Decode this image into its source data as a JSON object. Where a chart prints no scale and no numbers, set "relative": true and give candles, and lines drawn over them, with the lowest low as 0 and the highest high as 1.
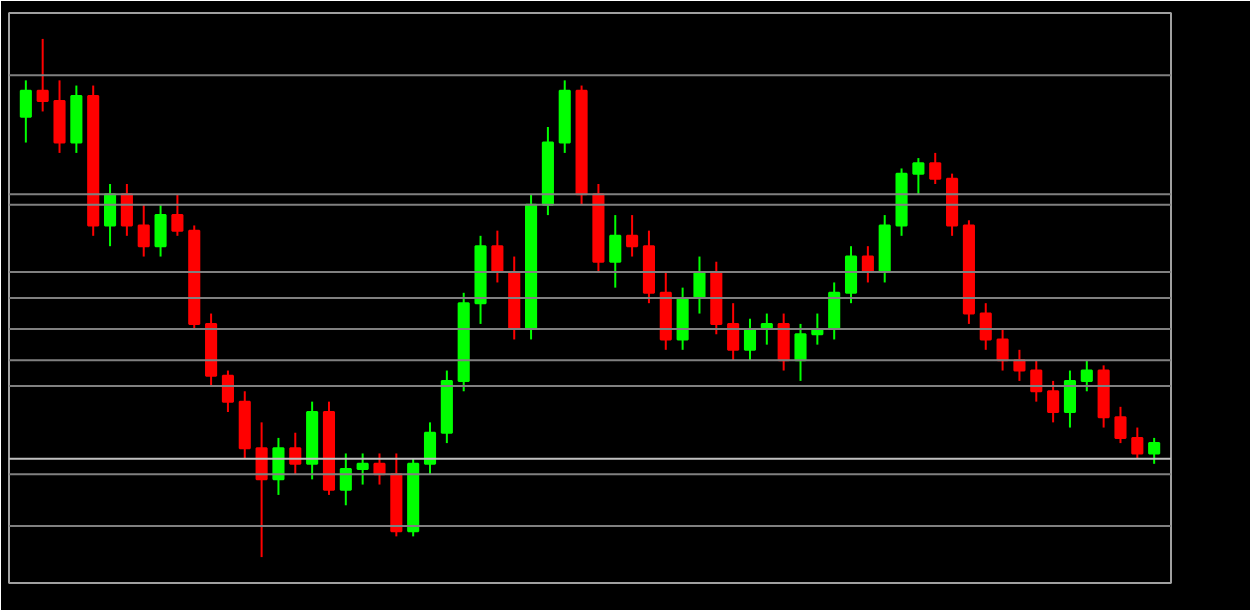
{
  "chart_data": {
    "type": "candlestick",
    "relative": true,
    "categories": [
      null,
      null,
      null,
      null,
      null,
      null,
      null,
      null,
      null,
      null,
      null,
      null,
      null,
      null,
      null,
      null,
      null,
      null,
      null,
      null,
      null,
      null,
      null,
      null,
      null,
      null,
      null,
      null,
      null,
      null,
      null,
      null,
      null,
      null,
      null,
      null,
      null,
      null,
      null,
      null,
      null,
      null,
      null,
      null,
      null,
      null,
      null,
      null,
      null,
      null,
      null,
      null,
      null,
      null,
      null,
      null,
      null,
      null,
      null,
      null,
      null,
      null,
      null,
      null,
      null,
      null,
      null,
      null
    ],
    "ohlc": [
      [
        0.85,
        0.92,
        0.8,
        0.9
      ],
      [
        0.9,
        1.0,
        0.86,
        0.88
      ],
      [
        0.88,
        0.92,
        0.78,
        0.8
      ],
      [
        0.8,
        0.91,
        0.78,
        0.89
      ],
      [
        0.89,
        0.91,
        0.62,
        0.64
      ],
      [
        0.64,
        0.72,
        0.6,
        0.7
      ],
      [
        0.7,
        0.72,
        0.62,
        0.64
      ],
      [
        0.64,
        0.68,
        0.58,
        0.6
      ],
      [
        0.6,
        0.68,
        0.58,
        0.66
      ],
      [
        0.66,
        0.7,
        0.62,
        0.63
      ],
      [
        0.63,
        0.64,
        0.44,
        0.45
      ],
      [
        0.45,
        0.47,
        0.33,
        0.35
      ],
      [
        0.35,
        0.36,
        0.28,
        0.3
      ],
      [
        0.3,
        0.32,
        0.19,
        0.21
      ],
      [
        0.21,
        0.26,
        0.0,
        0.15
      ],
      [
        0.15,
        0.23,
        0.12,
        0.21
      ],
      [
        0.21,
        0.24,
        0.16,
        0.18
      ],
      [
        0.18,
        0.3,
        0.15,
        0.28
      ],
      [
        0.28,
        0.3,
        0.12,
        0.13
      ],
      [
        0.13,
        0.2,
        0.1,
        0.17
      ],
      [
        0.17,
        0.2,
        0.14,
        0.18
      ],
      [
        0.18,
        0.2,
        0.14,
        0.16
      ],
      [
        0.16,
        0.2,
        0.04,
        0.05
      ],
      [
        0.05,
        0.19,
        0.04,
        0.18
      ],
      [
        0.18,
        0.26,
        0.16,
        0.24
      ],
      [
        0.24,
        0.36,
        0.22,
        0.34
      ],
      [
        0.34,
        0.51,
        0.32,
        0.49
      ],
      [
        0.49,
        0.62,
        0.45,
        0.6
      ],
      [
        0.6,
        0.63,
        0.53,
        0.55
      ],
      [
        0.55,
        0.58,
        0.42,
        0.44
      ],
      [
        0.44,
        0.7,
        0.42,
        0.68
      ],
      [
        0.68,
        0.83,
        0.66,
        0.8
      ],
      [
        0.8,
        0.92,
        0.78,
        0.9
      ],
      [
        0.9,
        0.91,
        0.68,
        0.7
      ],
      [
        0.7,
        0.72,
        0.55,
        0.57
      ],
      [
        0.57,
        0.66,
        0.52,
        0.62
      ],
      [
        0.62,
        0.66,
        0.58,
        0.6
      ],
      [
        0.6,
        0.63,
        0.49,
        0.51
      ],
      [
        0.51,
        0.55,
        0.4,
        0.42
      ],
      [
        0.42,
        0.52,
        0.4,
        0.5
      ],
      [
        0.5,
        0.58,
        0.47,
        0.55
      ],
      [
        0.55,
        0.57,
        0.43,
        0.45
      ],
      [
        0.45,
        0.49,
        0.38,
        0.4
      ],
      [
        0.4,
        0.46,
        0.38,
        0.44
      ],
      [
        0.44,
        0.47,
        0.41,
        0.45
      ],
      [
        0.45,
        0.47,
        0.36,
        0.38
      ],
      [
        0.38,
        0.45,
        0.34,
        0.43
      ],
      [
        0.43,
        0.47,
        0.41,
        0.44
      ],
      [
        0.44,
        0.53,
        0.42,
        0.51
      ],
      [
        0.51,
        0.6,
        0.49,
        0.58
      ],
      [
        0.58,
        0.6,
        0.53,
        0.55
      ],
      [
        0.55,
        0.66,
        0.53,
        0.64
      ],
      [
        0.64,
        0.75,
        0.62,
        0.74
      ],
      [
        0.74,
        0.77,
        0.7,
        0.76
      ],
      [
        0.76,
        0.78,
        0.72,
        0.73
      ],
      [
        0.73,
        0.74,
        0.62,
        0.64
      ],
      [
        0.64,
        0.65,
        0.45,
        0.47
      ],
      [
        0.47,
        0.49,
        0.4,
        0.42
      ],
      [
        0.42,
        0.44,
        0.36,
        0.38
      ],
      [
        0.38,
        0.4,
        0.34,
        0.36
      ],
      [
        0.36,
        0.38,
        0.3,
        0.32
      ],
      [
        0.32,
        0.34,
        0.26,
        0.28
      ],
      [
        0.28,
        0.36,
        0.25,
        0.34
      ],
      [
        0.34,
        0.38,
        0.32,
        0.36
      ],
      [
        0.36,
        0.37,
        0.25,
        0.27
      ],
      [
        0.27,
        0.29,
        0.22,
        0.23
      ],
      [
        0.23,
        0.25,
        0.19,
        0.2
      ],
      [
        0.2,
        0.23,
        0.18,
        0.22
      ]
    ],
    "colors": [
      "#00ff00",
      "#ff0000",
      "#ff0000",
      "#00ff00",
      "#ff0000",
      "#00ff00",
      "#ff0000",
      "#ff0000",
      "#00ff00",
      "#ff0000",
      "#ff0000",
      "#ff0000",
      "#ff0000",
      "#ff0000",
      "#ff0000",
      "#00ff00",
      "#ff0000",
      "#00ff00",
      "#ff0000",
      "#00ff00",
      "#00ff00",
      "#ff0000",
      "#ff0000",
      "#00ff00",
      "#00ff00",
      "#00ff00",
      "#00ff00",
      "#00ff00",
      "#ff0000",
      "#ff0000",
      "#00ff00",
      "#00ff00",
      "#00ff00",
      "#ff0000",
      "#ff0000",
      "#00ff00",
      "#ff0000",
      "#ff0000",
      "#ff0000",
      "#00ff00",
      "#00ff00",
      "#ff0000",
      "#ff0000",
      "#00ff00",
      "#00ff00",
      "#ff0000",
      "#00ff00",
      "#00ff00",
      "#00ff00",
      "#00ff00",
      "#ff0000",
      "#00ff00",
      "#00ff00",
      "#00ff00",
      "#ff0000",
      "#ff0000",
      "#ff0000",
      "#ff0000",
      "#ff0000",
      "#ff0000",
      "#ff0000",
      "#ff0000",
      "#00ff00",
      "#00ff00",
      "#ff0000",
      "#ff0000",
      "#ff0000",
      "#00ff00"
    ],
    "ref_lines": [
      {
        "axis": "y",
        "value": 0.93,
        "color": "#808080"
      },
      {
        "axis": "y",
        "value": 0.7,
        "color": "#808080"
      },
      {
        "axis": "y",
        "value": 0.68,
        "color": "#808080"
      },
      {
        "axis": "y",
        "value": 0.55,
        "color": "#808080"
      },
      {
        "axis": "y",
        "value": 0.5,
        "color": "#808080"
      },
      {
        "axis": "y",
        "value": 0.44,
        "color": "#808080"
      },
      {
        "axis": "y",
        "value": 0.38,
        "color": "#808080"
      },
      {
        "axis": "y",
        "value": 0.33,
        "color": "#808080"
      },
      {
        "axis": "y",
        "value": 0.19,
        "color": "#c0c0c0"
      },
      {
        "axis": "y",
        "value": 0.16,
        "color": "#808080"
      },
      {
        "axis": "y",
        "value": 0.06,
        "color": "#808080"
      }
    ],
    "grid": false
  }
}
